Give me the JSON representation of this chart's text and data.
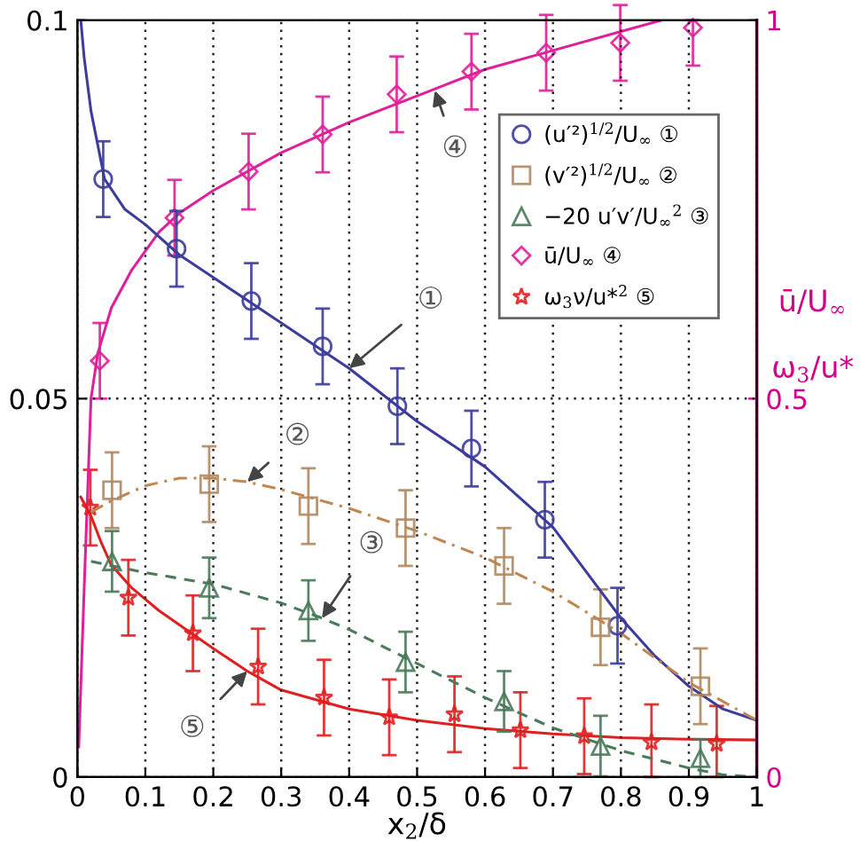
{
  "chart_data": {
    "type": "scatter",
    "xlabel": "x$_{2}$/δ",
    "y2label": "ū/U$_{∞}$\n\nω$_{3}$/u*",
    "xlim": [
      0,
      1
    ],
    "xticks": [
      0,
      0.1,
      0.2,
      0.3,
      0.4,
      0.5,
      0.6,
      0.7,
      0.8,
      0.9,
      1
    ],
    "ylim": [
      0,
      0.1
    ],
    "yticks": [
      0,
      0.05,
      0.1
    ],
    "y2lim": [
      0,
      1
    ],
    "y2ticks": [
      0,
      0.5,
      1
    ],
    "grid": true,
    "legend": "top right",
    "series": [
      {
        "name": "(u′²)$^{1/2}$/U$_{∞}$ ①",
        "color": "#3c3c9c",
        "marker": "circle",
        "x": [
          0.038,
          0.146,
          0.256,
          0.361,
          0.471,
          0.58,
          0.688,
          0.795
        ],
        "values": [
          0.079,
          0.0698,
          0.0629,
          0.0569,
          0.049,
          0.0434,
          0.034,
          0.02
        ],
        "errors": [
          0.005,
          0.005,
          0.005,
          0.005,
          0.005,
          0.005,
          0.005,
          0.005
        ]
      },
      {
        "name": "(v′²)$^{1/2}$/U$_{∞}$ ②",
        "color": "#b08860",
        "marker": "square",
        "x": [
          0.051,
          0.194,
          0.34,
          0.483,
          0.628,
          0.77,
          0.917
        ],
        "values": [
          0.0379,
          0.0387,
          0.0358,
          0.0329,
          0.0279,
          0.0198,
          0.012
        ],
        "errors": [
          0.005,
          0.005,
          0.005,
          0.005,
          0.005,
          0.005,
          0.005
        ]
      },
      {
        "name": "−20 u′v′/U$_{∞}$$^{2}$ ③",
        "color": "#4a7a5a",
        "marker": "triangle",
        "x": [
          0.051,
          0.194,
          0.34,
          0.483,
          0.628,
          0.77,
          0.917
        ],
        "values": [
          0.0285,
          0.025,
          0.022,
          0.0152,
          0.01,
          0.0041,
          0.0025
        ],
        "errors": [
          0.004,
          0.004,
          0.004,
          0.004,
          0.004,
          0.004,
          0.0025
        ]
      },
      {
        "name": "ū/U$_{∞}$ ④",
        "color": "#e0209a",
        "marker": "diamond",
        "axis": "y2",
        "x": [
          0.033,
          0.143,
          0.252,
          0.361,
          0.47,
          0.58,
          0.69,
          0.799,
          0.906
        ],
        "values": [
          0.55,
          0.739,
          0.8,
          0.849,
          0.902,
          0.932,
          0.957,
          0.97,
          0.99
        ],
        "errors": [
          0.05,
          0.05,
          0.05,
          0.05,
          0.05,
          0.05,
          0.05,
          0.05,
          [
            0.94,
            1
          ]
        ]
      },
      {
        "name": "ω$_{3}$ν/u*$^{2}$ ⑤",
        "color": "#e02020",
        "marker": "star",
        "axis": "y2",
        "x": [
          0.019,
          0.075,
          0.17,
          0.266,
          0.363,
          0.459,
          0.555,
          0.652,
          0.746,
          0.845,
          0.941
        ],
        "values": [
          0.356,
          0.237,
          0.19,
          0.146,
          0.105,
          0.079,
          0.083,
          0.062,
          0.054,
          0.046,
          0.044
        ],
        "errors": [
          0.05,
          0.05,
          0.05,
          0.05,
          0.05,
          0.05,
          0.05,
          0.05,
          0.05,
          [
            0,
            0.096
          ],
          [
            0,
            0.094
          ]
        ]
      },
      {
        "type": "line",
        "color": "#3c3c9c",
        "line_style": "solid",
        "x": [
          0.005,
          0.01,
          0.02,
          0.04,
          0.07,
          0.1,
          0.15,
          0.2,
          0.3,
          0.4,
          0.5,
          0.6,
          0.65,
          0.7,
          0.75,
          0.8,
          0.85,
          0.9,
          0.95,
          1.0
        ],
        "values": [
          0.1,
          0.095,
          0.088,
          0.079,
          0.075,
          0.073,
          0.069,
          0.066,
          0.06,
          0.054,
          0.047,
          0.041,
          0.037,
          0.033,
          0.027,
          0.021,
          0.016,
          0.012,
          0.009,
          0.0075
        ]
      },
      {
        "type": "line",
        "color": "#c08850",
        "line_style": "dashdot",
        "x": [
          0.02,
          0.05,
          0.1,
          0.15,
          0.2,
          0.25,
          0.3,
          0.4,
          0.5,
          0.6,
          0.7,
          0.8,
          0.9,
          1.0
        ],
        "values": [
          0.035,
          0.0365,
          0.0385,
          0.0395,
          0.0395,
          0.039,
          0.038,
          0.0355,
          0.0325,
          0.029,
          0.0245,
          0.019,
          0.0125,
          0.0075
        ]
      },
      {
        "type": "line",
        "color": "#4a7a5a",
        "line_style": "dashed",
        "x": [
          0.02,
          0.1,
          0.2,
          0.3,
          0.36,
          0.4,
          0.5,
          0.6,
          0.7,
          0.8,
          0.9,
          0.95,
          1.0
        ],
        "values": [
          0.0285,
          0.027,
          0.0255,
          0.023,
          0.021,
          0.0195,
          0.015,
          0.0105,
          0.0065,
          0.0035,
          0.0012,
          0.0003,
          0.0
        ]
      },
      {
        "type": "line",
        "color": "#e0209a",
        "line_style": "solid",
        "axis": "y2",
        "x": [
          0.002,
          0.01,
          0.02,
          0.03,
          0.05,
          0.08,
          0.12,
          0.15,
          0.2,
          0.3,
          0.4,
          0.5,
          0.6,
          0.7,
          0.8,
          0.86
        ],
        "values": [
          0.04,
          0.25,
          0.5,
          0.56,
          0.62,
          0.67,
          0.72,
          0.745,
          0.775,
          0.825,
          0.865,
          0.9,
          0.935,
          0.96,
          0.985,
          1.0
        ]
      },
      {
        "type": "line",
        "color": "#e02020",
        "line_style": "solid",
        "axis": "y2",
        "x": [
          0.005,
          0.02,
          0.035,
          0.05,
          0.08,
          0.12,
          0.2,
          0.25,
          0.3,
          0.4,
          0.5,
          0.6,
          0.7,
          0.8,
          0.9,
          1.0
        ],
        "values": [
          0.37,
          0.345,
          0.31,
          0.28,
          0.25,
          0.22,
          0.17,
          0.14,
          0.115,
          0.09,
          0.075,
          0.064,
          0.057,
          0.052,
          0.05,
          0.049
        ]
      }
    ],
    "annotations": [
      {
        "text": "①",
        "x": 0.4,
        "y": 0.054
      },
      {
        "text": "②",
        "x": 0.25,
        "y": 0.039
      },
      {
        "text": "③",
        "x": 0.36,
        "y": 0.021
      },
      {
        "text": "④",
        "x": 0.526,
        "y": 0.0907
      },
      {
        "text": "⑤",
        "x": 0.25,
        "y": 0.014
      }
    ]
  }
}
